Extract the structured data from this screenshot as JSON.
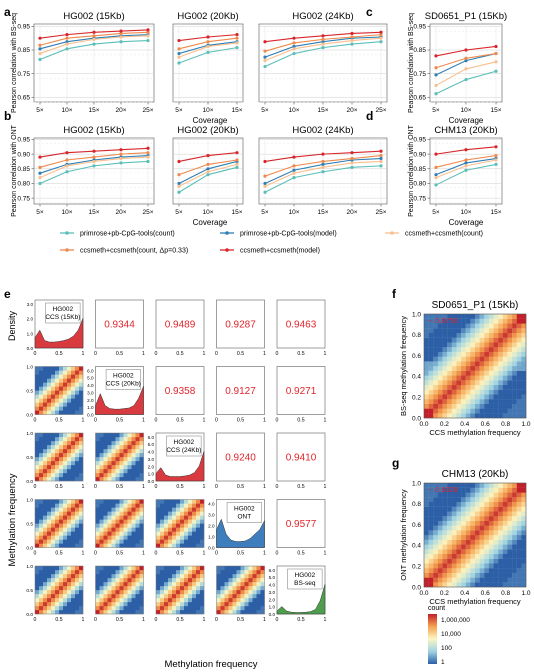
{
  "figure": {
    "panel_letters": [
      "a",
      "b",
      "c",
      "d",
      "e",
      "f",
      "g"
    ],
    "line_ylabel_bs": "Pearson correlation with BS-seq",
    "line_ylabel_ont": "Pearson correlation with ONT",
    "line_xlabel": "Coverage",
    "matrix_ylabel": "Methylation frequency",
    "matrix_xlabel": "Methylation frequency",
    "matrix_density_label": "Density",
    "colorbar_title": "count",
    "colorbar_ticks": [
      "1,000,000",
      "10,000",
      "100",
      "1"
    ],
    "palette": {
      "primrose_count": "#5bbfb8",
      "primrose_model": "#2f7fb5",
      "ccs_count": "#f9c08f",
      "ccs_dp": "#ee8a4d",
      "ccs_model": "#d7262b",
      "correlation_text": "#e0262b",
      "density_hg002_ccs": "#d93a3f",
      "density_ont": "#3f7ebc",
      "density_bs": "#4e9e4d"
    },
    "legend": [
      {
        "label": "primrose+pb-CpG-tools(count)",
        "color": "#5bbfb8"
      },
      {
        "label": "primrose+pb-CpG-tools(model)",
        "color": "#2f7fb5"
      },
      {
        "label": "ccsmeth+ccsmeth(count)",
        "color": "#f9c08f"
      },
      {
        "label": "ccsmeth+ccsmeth(count, Δp=0.33)",
        "color": "#ee8a4d"
      },
      {
        "label": "ccsmeth+ccsmeth(model)",
        "color": "#d7262b"
      }
    ]
  },
  "chart_data": [
    {
      "id": "a1",
      "type": "line",
      "title": "HG002 (15Kb)",
      "x": [
        "5×",
        "10×",
        "15×",
        "20×",
        "25×"
      ],
      "yticks": [
        "0.65",
        "0.75",
        "0.85",
        "0.95"
      ],
      "ylim": [
        0.63,
        0.96
      ],
      "series": [
        {
          "name": "primrose+pb-CpG-tools(count)",
          "values": [
            0.81,
            0.855,
            0.875,
            0.885,
            0.89
          ]
        },
        {
          "name": "primrose+pb-CpG-tools(model)",
          "values": [
            0.855,
            0.885,
            0.9,
            0.91,
            0.915
          ]
        },
        {
          "name": "ccsmeth+ccsmeth(count)",
          "values": [
            0.835,
            0.875,
            0.895,
            0.905,
            0.91
          ]
        },
        {
          "name": "ccsmeth+ccsmeth(count, Δp=0.33)",
          "values": [
            0.87,
            0.9,
            0.91,
            0.92,
            0.925
          ]
        },
        {
          "name": "ccsmeth+ccsmeth(model)",
          "values": [
            0.9,
            0.915,
            0.925,
            0.93,
            0.935
          ]
        }
      ]
    },
    {
      "id": "a2",
      "type": "line",
      "title": "HG002 (20Kb)",
      "x": [
        "5×",
        "10×",
        "15×"
      ],
      "yticks": [],
      "ylim": [
        0.63,
        0.96
      ],
      "series": [
        {
          "name": "primrose+pb-CpG-tools(count)",
          "values": [
            0.795,
            0.84,
            0.86
          ]
        },
        {
          "name": "primrose+pb-CpG-tools(model)",
          "values": [
            0.835,
            0.87,
            0.885
          ]
        },
        {
          "name": "ccsmeth+ccsmeth(count)",
          "values": [
            0.82,
            0.865,
            0.88
          ]
        },
        {
          "name": "ccsmeth+ccsmeth(count, Δp=0.33)",
          "values": [
            0.855,
            0.885,
            0.9
          ]
        },
        {
          "name": "ccsmeth+ccsmeth(model)",
          "values": [
            0.89,
            0.905,
            0.915
          ]
        }
      ]
    },
    {
      "id": "a3",
      "type": "line",
      "title": "HG002 (24Kb)",
      "x": [
        "5×",
        "10×",
        "15×",
        "20×",
        "25×"
      ],
      "yticks": [],
      "ylim": [
        0.63,
        0.96
      ],
      "series": [
        {
          "name": "primrose+pb-CpG-tools(count)",
          "values": [
            0.78,
            0.835,
            0.86,
            0.875,
            0.885
          ]
        },
        {
          "name": "primrose+pb-CpG-tools(model)",
          "values": [
            0.82,
            0.865,
            0.885,
            0.9,
            0.905
          ]
        },
        {
          "name": "ccsmeth+ccsmeth(count)",
          "values": [
            0.805,
            0.855,
            0.875,
            0.89,
            0.9
          ]
        },
        {
          "name": "ccsmeth+ccsmeth(count, Δp=0.33)",
          "values": [
            0.845,
            0.88,
            0.895,
            0.905,
            0.915
          ]
        },
        {
          "name": "ccsmeth+ccsmeth(model)",
          "values": [
            0.885,
            0.9,
            0.91,
            0.92,
            0.925
          ]
        }
      ]
    },
    {
      "id": "c",
      "type": "line",
      "title": "SD0651_P1 (15Kb)",
      "x": [
        "5×",
        "10×",
        "15×"
      ],
      "yticks": [
        "0.65",
        "0.75",
        "0.85",
        "0.95"
      ],
      "ylim": [
        0.63,
        0.96
      ],
      "series": [
        {
          "name": "primrose+pb-CpG-tools(count)",
          "values": [
            0.665,
            0.725,
            0.76
          ]
        },
        {
          "name": "primrose+pb-CpG-tools(model)",
          "values": [
            0.745,
            0.805,
            0.835
          ]
        },
        {
          "name": "ccsmeth+ccsmeth(count)",
          "values": [
            0.7,
            0.77,
            0.8
          ]
        },
        {
          "name": "ccsmeth+ccsmeth(count, Δp=0.33)",
          "values": [
            0.775,
            0.815,
            0.835
          ]
        },
        {
          "name": "ccsmeth+ccsmeth(model)",
          "values": [
            0.825,
            0.85,
            0.865
          ]
        }
      ]
    },
    {
      "id": "b1",
      "type": "line",
      "title": "HG002 (15Kb)",
      "x": [
        "5×",
        "10×",
        "15×",
        "20×",
        "25×"
      ],
      "yticks": [
        "0.75",
        "0.80",
        "0.85",
        "0.90",
        "0.95"
      ],
      "ylim": [
        0.73,
        0.955
      ],
      "series": [
        {
          "name": "primrose+pb-CpG-tools(count)",
          "values": [
            0.8,
            0.84,
            0.86,
            0.87,
            0.875
          ]
        },
        {
          "name": "primrose+pb-CpG-tools(model)",
          "values": [
            0.835,
            0.865,
            0.88,
            0.89,
            0.895
          ]
        },
        {
          "name": "ccsmeth+ccsmeth(count)",
          "values": [
            0.82,
            0.86,
            0.875,
            0.885,
            0.89
          ]
        },
        {
          "name": "ccsmeth+ccsmeth(count, Δp=0.33)",
          "values": [
            0.855,
            0.88,
            0.89,
            0.9,
            0.905
          ]
        },
        {
          "name": "ccsmeth+ccsmeth(model)",
          "values": [
            0.89,
            0.905,
            0.91,
            0.915,
            0.92
          ]
        }
      ]
    },
    {
      "id": "b2",
      "type": "line",
      "title": "HG002 (20Kb)",
      "x": [
        "5×",
        "10×",
        "15×"
      ],
      "yticks": [],
      "ylim": [
        0.73,
        0.955
      ],
      "series": [
        {
          "name": "primrose+pb-CpG-tools(count)",
          "values": [
            0.77,
            0.83,
            0.855
          ]
        },
        {
          "name": "primrose+pb-CpG-tools(model)",
          "values": [
            0.8,
            0.85,
            0.875
          ]
        },
        {
          "name": "ccsmeth+ccsmeth(count)",
          "values": [
            0.79,
            0.84,
            0.865
          ]
        },
        {
          "name": "ccsmeth+ccsmeth(count, Δp=0.33)",
          "values": [
            0.83,
            0.865,
            0.88
          ]
        },
        {
          "name": "ccsmeth+ccsmeth(model)",
          "values": [
            0.875,
            0.895,
            0.905
          ]
        }
      ]
    },
    {
      "id": "b3",
      "type": "line",
      "title": "HG002 (24Kb)",
      "x": [
        "5×",
        "10×",
        "15×",
        "20×",
        "25×"
      ],
      "yticks": [],
      "ylim": [
        0.73,
        0.955
      ],
      "series": [
        {
          "name": "primrose+pb-CpG-tools(count)",
          "values": [
            0.77,
            0.82,
            0.84,
            0.855,
            0.86
          ]
        },
        {
          "name": "primrose+pb-CpG-tools(model)",
          "values": [
            0.8,
            0.845,
            0.865,
            0.88,
            0.885
          ]
        },
        {
          "name": "ccsmeth+ccsmeth(count)",
          "values": [
            0.79,
            0.835,
            0.855,
            0.87,
            0.875
          ]
        },
        {
          "name": "ccsmeth+ccsmeth(count, Δp=0.33)",
          "values": [
            0.825,
            0.86,
            0.875,
            0.885,
            0.895
          ]
        },
        {
          "name": "ccsmeth+ccsmeth(model)",
          "values": [
            0.875,
            0.89,
            0.9,
            0.905,
            0.91
          ]
        }
      ]
    },
    {
      "id": "d",
      "type": "line",
      "title": "CHM13 (20Kb)",
      "x": [
        "5×",
        "10×",
        "15×"
      ],
      "yticks": [
        "0.75",
        "0.80",
        "0.85",
        "0.90",
        "0.95"
      ],
      "ylim": [
        0.73,
        0.955
      ],
      "series": [
        {
          "name": "primrose+pb-CpG-tools(count)",
          "values": [
            0.795,
            0.845,
            0.865
          ]
        },
        {
          "name": "primrose+pb-CpG-tools(model)",
          "values": [
            0.83,
            0.87,
            0.885
          ]
        },
        {
          "name": "ccsmeth+ccsmeth(count)",
          "values": [
            0.82,
            0.86,
            0.88
          ]
        },
        {
          "name": "ccsmeth+ccsmeth(count, Δp=0.33)",
          "values": [
            0.855,
            0.88,
            0.895
          ]
        },
        {
          "name": "ccsmeth+ccsmeth(model)",
          "values": [
            0.9,
            0.915,
            0.925
          ]
        }
      ]
    },
    {
      "id": "e",
      "type": "heatmap",
      "samples": [
        "HG002\nCCS (15Kb)",
        "HG002\nCCS (20Kb)",
        "HG002\nCCS (24Kb)",
        "HG002\nONT",
        "HG002\nBS-seq"
      ],
      "correlations": [
        {
          "row": 1,
          "col": 2,
          "value": "0.9344"
        },
        {
          "row": 1,
          "col": 3,
          "value": "0.9489"
        },
        {
          "row": 1,
          "col": 4,
          "value": "0.9287"
        },
        {
          "row": 1,
          "col": 5,
          "value": "0.9463"
        },
        {
          "row": 2,
          "col": 3,
          "value": "0.9358"
        },
        {
          "row": 2,
          "col": 4,
          "value": "0.9127"
        },
        {
          "row": 2,
          "col": 5,
          "value": "0.9271"
        },
        {
          "row": 3,
          "col": 4,
          "value": "0.9240"
        },
        {
          "row": 3,
          "col": 5,
          "value": "0.9410"
        },
        {
          "row": 4,
          "col": 5,
          "value": "0.9577"
        }
      ],
      "axis_ticks": [
        "0",
        "0.5",
        "1"
      ],
      "density_yticks": [
        [
          "0.0",
          "1.0",
          "2.0",
          "3.0"
        ],
        [
          "0.0",
          "1.0",
          "2.0",
          "3.0",
          "4.0",
          "5.0",
          "6.0"
        ],
        [
          "0.0",
          "1.0",
          "2.0",
          "3.0",
          "4.0",
          "5.0",
          "6.0"
        ],
        [
          "0.0",
          "1.0",
          "2.0",
          "3.0",
          "4.0"
        ],
        [
          "0.0",
          "1.0",
          "2.0",
          "3.0",
          "4.0",
          "5.0",
          "6.0"
        ]
      ],
      "scatter_ticks": [
        "0.0",
        "0.5",
        "1.0"
      ]
    },
    {
      "id": "f",
      "type": "heatmap",
      "title": "SD0651_P1 (15Kb)",
      "correlation": "0.8750",
      "xlabel": "CCS methylation frequency",
      "ylabel": "BS-seq methylation frequency",
      "ticks": [
        "0.0",
        "0.2",
        "0.4",
        "0.6",
        "0.8",
        "1.0"
      ]
    },
    {
      "id": "g",
      "type": "heatmap",
      "title": "CHM13 (20Kb)",
      "correlation": "0.9328",
      "xlabel": "CCS methylation frequency",
      "ylabel": "ONT methylation frequency",
      "ticks": [
        "0.0",
        "0.2",
        "0.4",
        "0.6",
        "0.8",
        "1.0"
      ]
    }
  ]
}
